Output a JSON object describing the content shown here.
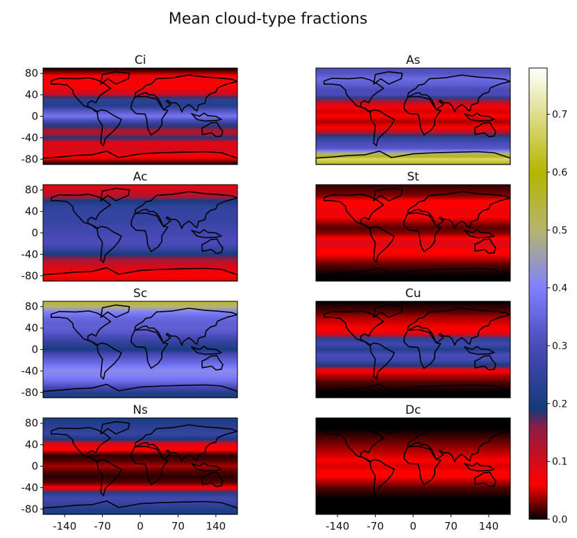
{
  "figure": {
    "title": "Mean cloud-type fractions"
  },
  "chart_data": {
    "type": "heatmap",
    "title": "Mean cloud-type fractions",
    "xlabel": "",
    "ylabel": "",
    "xlim": [
      -180,
      180
    ],
    "ylim": [
      -90,
      90
    ],
    "x_ticks": [
      -140,
      -70,
      0,
      70,
      140
    ],
    "y_ticks": [
      80,
      40,
      0,
      -40,
      -80
    ],
    "colorbar": {
      "range": [
        0.0,
        0.78
      ],
      "ticks": [
        0.0,
        0.1,
        0.2,
        0.3,
        0.4,
        0.5,
        0.6,
        0.7
      ],
      "tick_labels": [
        "0.0",
        "0.1",
        "0.2",
        "0.3",
        "0.4",
        "0.5",
        "0.6",
        "0.7"
      ],
      "stops": [
        {
          "value": 0.0,
          "color": "#000000"
        },
        {
          "value": 0.06,
          "color": "#ff0000"
        },
        {
          "value": 0.16,
          "color": "#8b1e45"
        },
        {
          "value": 0.19,
          "color": "#143a7a"
        },
        {
          "value": 0.3,
          "color": "#4a4ab8"
        },
        {
          "value": 0.4,
          "color": "#8080ff"
        },
        {
          "value": 0.5,
          "color": "#b5b56e"
        },
        {
          "value": 0.6,
          "color": "#b5b500"
        },
        {
          "value": 0.78,
          "color": "#ffffff"
        }
      ]
    },
    "panels": [
      {
        "name": "Ci",
        "zonal_mean": {
          "lat": [
            -90,
            -80,
            -70,
            -60,
            -50,
            -40,
            -30,
            -20,
            -10,
            0,
            10,
            20,
            30,
            40,
            50,
            60,
            70,
            80,
            90
          ],
          "value": [
            0.0,
            0.05,
            0.08,
            0.1,
            0.08,
            0.2,
            0.12,
            0.18,
            0.28,
            0.38,
            0.32,
            0.22,
            0.24,
            0.12,
            0.08,
            0.06,
            0.08,
            0.04,
            0.0
          ]
        }
      },
      {
        "name": "As",
        "zonal_mean": {
          "lat": [
            -90,
            -80,
            -70,
            -60,
            -50,
            -40,
            -30,
            -20,
            -10,
            0,
            10,
            20,
            30,
            40,
            50,
            60,
            70,
            80,
            90
          ],
          "value": [
            0.6,
            0.68,
            0.5,
            0.32,
            0.3,
            0.24,
            0.12,
            0.06,
            0.04,
            0.06,
            0.05,
            0.08,
            0.16,
            0.3,
            0.3,
            0.34,
            0.36,
            0.32,
            0.3
          ]
        }
      },
      {
        "name": "Ac",
        "zonal_mean": {
          "lat": [
            -90,
            -80,
            -70,
            -60,
            -50,
            -40,
            -30,
            -20,
            -10,
            0,
            10,
            20,
            30,
            40,
            50,
            60,
            70,
            80,
            90
          ],
          "value": [
            0.05,
            0.06,
            0.08,
            0.1,
            0.14,
            0.2,
            0.26,
            0.3,
            0.3,
            0.28,
            0.28,
            0.26,
            0.26,
            0.26,
            0.24,
            0.2,
            0.12,
            0.1,
            0.08
          ]
        }
      },
      {
        "name": "St",
        "zonal_mean": {
          "lat": [
            -90,
            -80,
            -70,
            -60,
            -50,
            -40,
            -30,
            -20,
            -10,
            0,
            10,
            20,
            30,
            40,
            50,
            60,
            70,
            80,
            90
          ],
          "value": [
            0.0,
            0.0,
            0.01,
            0.02,
            0.04,
            0.06,
            0.06,
            0.1,
            0.06,
            0.03,
            0.02,
            0.04,
            0.06,
            0.08,
            0.06,
            0.06,
            0.03,
            0.02,
            0.01
          ]
        }
      },
      {
        "name": "Sc",
        "zonal_mean": {
          "lat": [
            -90,
            -80,
            -70,
            -60,
            -50,
            -40,
            -30,
            -20,
            -10,
            0,
            10,
            20,
            30,
            40,
            50,
            60,
            70,
            80,
            90
          ],
          "value": [
            0.2,
            0.22,
            0.3,
            0.36,
            0.4,
            0.42,
            0.38,
            0.34,
            0.3,
            0.2,
            0.24,
            0.28,
            0.32,
            0.34,
            0.34,
            0.36,
            0.4,
            0.5,
            0.55
          ]
        }
      },
      {
        "name": "Cu",
        "zonal_mean": {
          "lat": [
            -90,
            -80,
            -70,
            -60,
            -50,
            -40,
            -30,
            -20,
            -10,
            0,
            10,
            20,
            30,
            40,
            50,
            60,
            70,
            80,
            90
          ],
          "value": [
            0.0,
            0.0,
            0.01,
            0.02,
            0.04,
            0.06,
            0.2,
            0.28,
            0.3,
            0.22,
            0.28,
            0.24,
            0.08,
            0.06,
            0.05,
            0.04,
            0.02,
            0.01,
            0.0
          ]
        }
      },
      {
        "name": "Ns",
        "zonal_mean": {
          "lat": [
            -90,
            -80,
            -70,
            -60,
            -50,
            -40,
            -30,
            -20,
            -10,
            0,
            10,
            20,
            30,
            40,
            50,
            60,
            70,
            80,
            90
          ],
          "value": [
            0.2,
            0.22,
            0.26,
            0.28,
            0.22,
            0.06,
            0.02,
            0.01,
            0.02,
            0.04,
            0.02,
            0.01,
            0.06,
            0.08,
            0.2,
            0.26,
            0.24,
            0.22,
            0.2
          ]
        }
      },
      {
        "name": "Dc",
        "zonal_mean": {
          "lat": [
            -90,
            -80,
            -70,
            -60,
            -50,
            -40,
            -30,
            -20,
            -10,
            0,
            10,
            20,
            30,
            40,
            50,
            60,
            70,
            80,
            90
          ],
          "value": [
            0.0,
            0.0,
            0.0,
            0.0,
            0.01,
            0.02,
            0.04,
            0.06,
            0.06,
            0.05,
            0.06,
            0.05,
            0.04,
            0.03,
            0.02,
            0.01,
            0.0,
            0.0,
            0.0
          ]
        }
      }
    ]
  }
}
